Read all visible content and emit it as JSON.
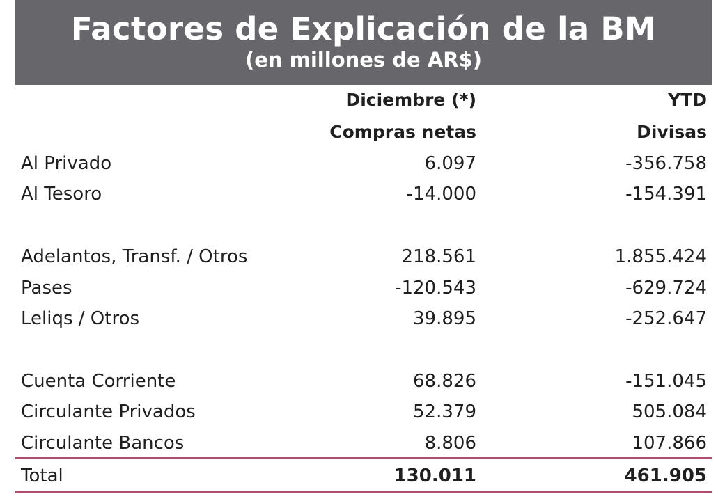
{
  "header": {
    "title": "Factores de Explicación de la BM",
    "subtitle": "(en millones de AR$)"
  },
  "columns": [
    {
      "top": "Diciembre (*)",
      "sub": "Compras netas"
    },
    {
      "top": "YTD",
      "sub": "Divisas"
    }
  ],
  "rows": [
    {
      "label": "Al Privado",
      "v1": "6.097",
      "v2": "-356.758"
    },
    {
      "label": "Al Tesoro",
      "v1": "-14.000",
      "v2": "-154.391"
    },
    {
      "label": "Adelantos, Transf. / Otros",
      "v1": "218.561",
      "v2": "1.855.424"
    },
    {
      "label": "Pases",
      "v1": "-120.543",
      "v2": "-629.724"
    },
    {
      "label": "Leliqs / Otros",
      "v1": "39.895",
      "v2": "-252.647"
    },
    {
      "label": "Cuenta Corriente",
      "v1": "68.826",
      "v2": "-151.045"
    },
    {
      "label": "Circulante Privados",
      "v1": "52.379",
      "v2": "505.084"
    },
    {
      "label": "Circulante Bancos",
      "v1": "8.806",
      "v2": "107.866"
    }
  ],
  "total": {
    "label": "Total",
    "v1": "130.011",
    "v2": "461.905"
  },
  "colors": {
    "banner": "#67666b",
    "rule": "#b34d6e"
  }
}
